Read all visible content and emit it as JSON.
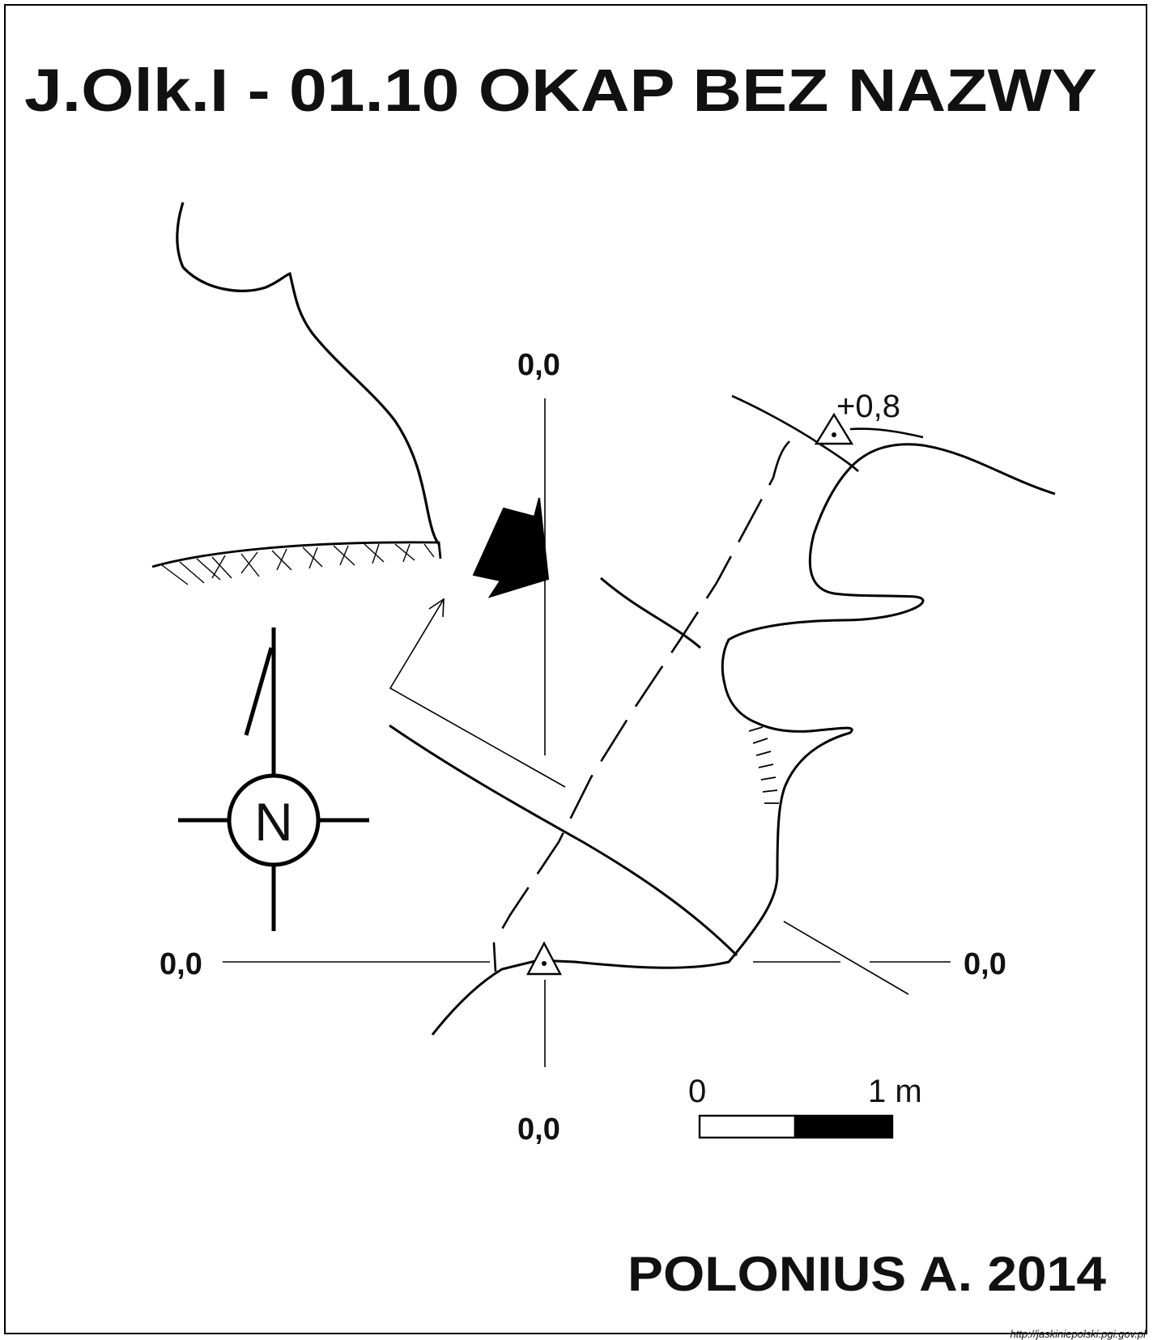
{
  "title": "J.Olk.I - 01.10  OKAP BEZ NAZWY",
  "author": "POLONIUS A. 2014",
  "url": "http://jaskiniepolski.pgi.gov.pl",
  "compass": {
    "letter": "N",
    "icon": "north-arrow-icon"
  },
  "coords": {
    "top": "0,0",
    "bottom": "0,0",
    "left": "0,0",
    "right": "0,0"
  },
  "elevation_label": "+0,8",
  "scale": {
    "zero": "0",
    "one": "1 m"
  }
}
